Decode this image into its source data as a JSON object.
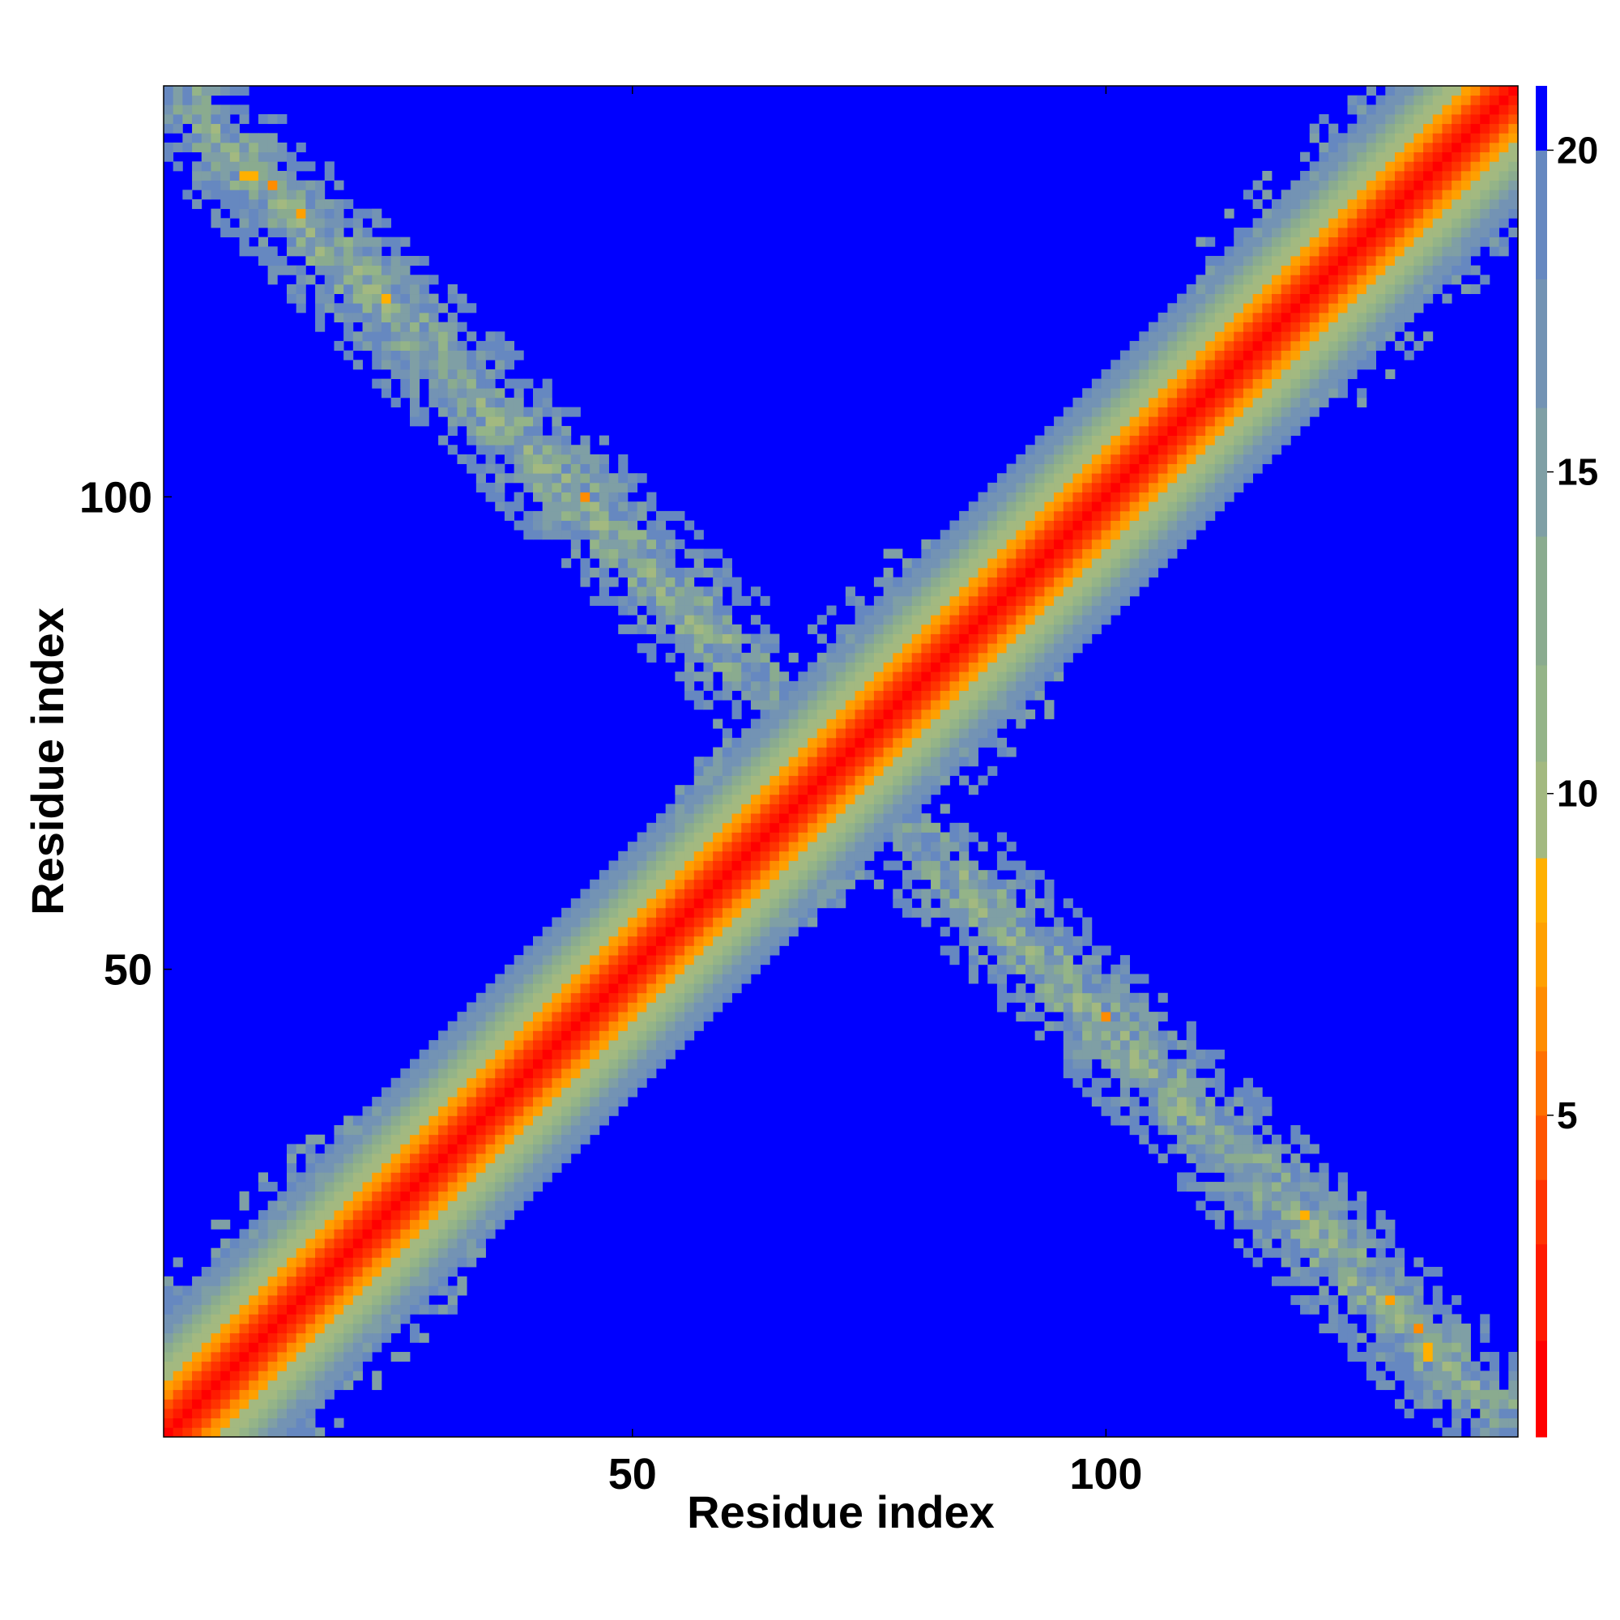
{
  "chart_data": {
    "type": "heatmap",
    "title": "",
    "xlabel": "Residue index",
    "ylabel": "Residue index",
    "xlim": [
      1,
      143
    ],
    "ylim": [
      1,
      143
    ],
    "x_ticks": [
      50,
      100
    ],
    "y_ticks": [
      50,
      100
    ],
    "n_residues": 143,
    "colorbar": {
      "ticks": [
        5,
        10,
        15,
        20
      ],
      "range": [
        0,
        21
      ],
      "levels": [
        {
          "max": 1.5,
          "color": "#ff0000"
        },
        {
          "max": 3.0,
          "color": "#ff1a00"
        },
        {
          "max": 4.0,
          "color": "#ff3300"
        },
        {
          "max": 5.0,
          "color": "#ff5500"
        },
        {
          "max": 6.0,
          "color": "#ff7000"
        },
        {
          "max": 7.0,
          "color": "#ff8c00"
        },
        {
          "max": 8.0,
          "color": "#ffa000"
        },
        {
          "max": 9.0,
          "color": "#ffb000"
        },
        {
          "max": 10.5,
          "color": "#a3b980"
        },
        {
          "max": 12.0,
          "color": "#94b488"
        },
        {
          "max": 14.0,
          "color": "#8aab8f"
        },
        {
          "max": 16.0,
          "color": "#7f9fa5"
        },
        {
          "max": 18.0,
          "color": "#7393b4"
        },
        {
          "max": 20.0,
          "color": "#6688c0"
        },
        {
          "max": 21.0,
          "color": "#0000ff"
        }
      ]
    },
    "structure": {
      "diagonal_profile": [
        {
          "offset": 0,
          "value": 1.0
        },
        {
          "offset": 1,
          "value": 2.5
        },
        {
          "offset": 2,
          "value": 3.8
        },
        {
          "offset": 3,
          "value": 5.0
        },
        {
          "offset": 4,
          "value": 6.5
        },
        {
          "offset": 5,
          "value": 7.5
        },
        {
          "offset": 6,
          "value": 9.5
        },
        {
          "offset": 7,
          "value": 10.5
        },
        {
          "offset": 8,
          "value": 12.0
        },
        {
          "offset": 9,
          "value": 13.5
        },
        {
          "offset": 10,
          "value": 15.0
        },
        {
          "offset": 11,
          "value": 16.5
        },
        {
          "offset": 12,
          "value": 18.0
        },
        {
          "offset": 13,
          "value": 19.5
        }
      ],
      "background_value": 21,
      "antiparallel_contacts": [
        {
          "i_range": [
            1,
            66
          ],
          "j_range": [
            143,
            78
          ],
          "description": "beta-sheet like band between N-terminal half and C-terminal half"
        }
      ],
      "contact_clusters": [
        {
          "i_range": [
            1,
            35
          ],
          "j_range": [
            1,
            35
          ]
        },
        {
          "i_range": [
            108,
            143
          ],
          "j_range": [
            108,
            143
          ]
        },
        {
          "i_range": [
            55,
            95
          ],
          "j_range": [
            55,
            95
          ]
        }
      ]
    }
  }
}
